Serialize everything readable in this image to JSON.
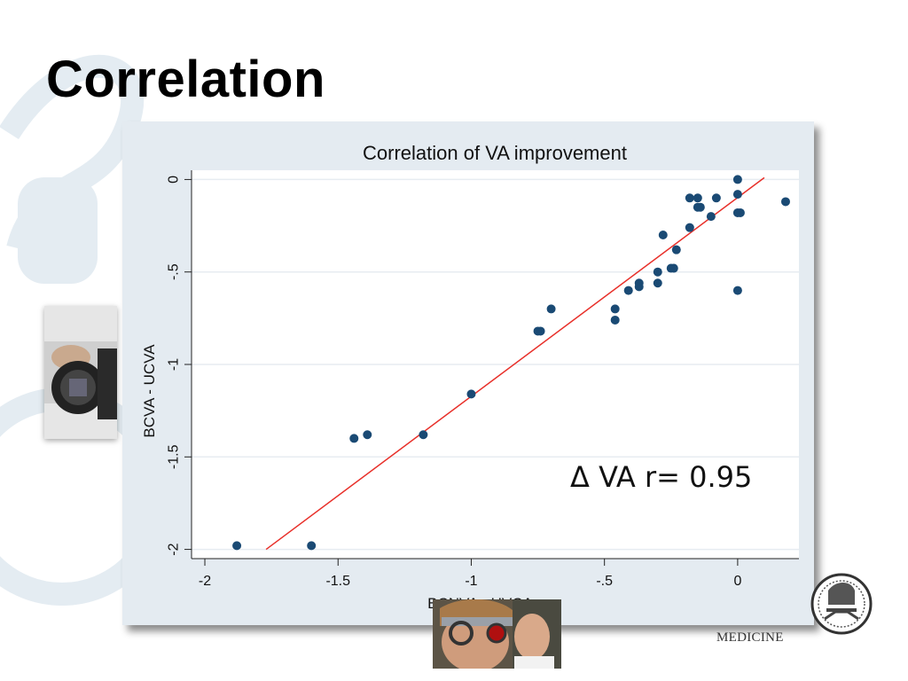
{
  "slide": {
    "title": "Correlation",
    "logo_text": "MEDICINE"
  },
  "colors": {
    "panel_bg": "#e4ebf1",
    "plot_bg": "#ffffff",
    "marker": "#1a4a74",
    "fit_line": "#e8302a",
    "grid": "#e7ecf1"
  },
  "chart_data": {
    "type": "scatter",
    "title": "Correlation of VA improvement",
    "xlabel": "BCNVA - UVCA",
    "ylabel": "BCVA - UCVA",
    "xlim": [
      -2.05,
      0.23
    ],
    "ylim": [
      -2.05,
      0.05
    ],
    "x_ticks": [
      -2,
      -1.5,
      -1,
      -0.5,
      0
    ],
    "x_tick_labels": [
      "-2",
      "-1.5",
      "-1",
      "-.5",
      "0"
    ],
    "y_ticks": [
      0,
      -0.5,
      -1,
      -1.5,
      -2
    ],
    "y_tick_labels": [
      "0",
      "-.5",
      "-1",
      "-1.5",
      "-2"
    ],
    "grid": true,
    "annotation": "Δ VA r= 0.95",
    "series": [
      {
        "x": [
          -1.88,
          -1.6,
          -1.44,
          -1.39,
          -1.18,
          -1.0,
          -0.75,
          -0.74,
          -0.7,
          -0.46,
          -0.46,
          -0.41,
          -0.37,
          -0.37,
          -0.3,
          -0.3,
          -0.25,
          -0.24,
          -0.23,
          -0.28,
          -0.18,
          -0.18,
          -0.15,
          -0.15,
          -0.14,
          -0.1,
          -0.08,
          0.0,
          0.0,
          0.0,
          0.01,
          0.0,
          0.18
        ],
        "y": [
          -1.98,
          -1.98,
          -1.4,
          -1.38,
          -1.38,
          -1.16,
          -0.82,
          -0.82,
          -0.7,
          -0.7,
          -0.76,
          -0.6,
          -0.58,
          -0.56,
          -0.56,
          -0.5,
          -0.48,
          -0.48,
          -0.38,
          -0.3,
          -0.26,
          -0.1,
          -0.1,
          -0.15,
          -0.15,
          -0.2,
          -0.1,
          0.0,
          -0.08,
          -0.18,
          -0.18,
          -0.6,
          -0.12
        ]
      }
    ],
    "fit_line": {
      "x": [
        -1.77,
        0.1
      ],
      "y": [
        -2.0,
        0.01
      ]
    }
  }
}
